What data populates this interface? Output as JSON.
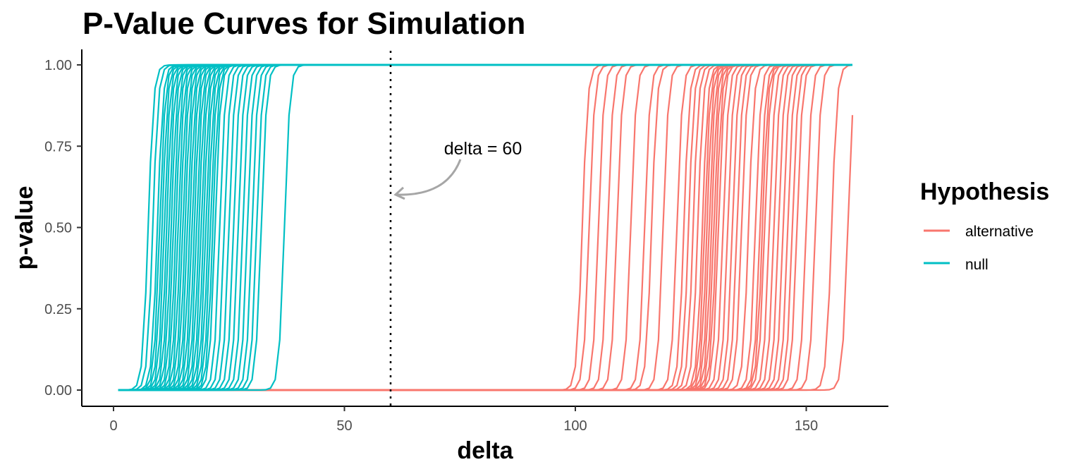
{
  "chart_data": {
    "type": "line",
    "title": "P-Value Curves for Simulation",
    "xlabel": "delta",
    "ylabel": "p-value",
    "xlim": [
      -7,
      167
    ],
    "ylim": [
      -0.05,
      1.05
    ],
    "xticks": [
      0,
      50,
      100,
      150
    ],
    "yticks": [
      0.0,
      0.25,
      0.5,
      0.75,
      1.0
    ],
    "xtick_labels": [
      "0",
      "50",
      "100",
      "150"
    ],
    "ytick_labels": [
      "0.00",
      "0.25",
      "0.50",
      "0.75",
      "1.00"
    ],
    "x_range": [
      1,
      160
    ],
    "grid": false,
    "legend": {
      "title": "Hypothesis",
      "position": "right",
      "entries": [
        {
          "label": "alternative",
          "color": "#F8766D"
        },
        {
          "label": "null",
          "color": "#00BFC4"
        }
      ]
    },
    "reference_line": {
      "x": 60,
      "style": "dotted",
      "color": "#000000"
    },
    "annotation": {
      "text": "delta = 60",
      "arrow_to": [
        60,
        0.6
      ],
      "arrow_color": "#A6A6A6"
    },
    "series": [
      {
        "group": "null",
        "color": "#00BFC4",
        "transition_points": [
          7.5,
          8.5,
          9.5,
          10.0,
          10.5,
          11.0,
          11.5,
          12.0,
          12.5,
          13.0,
          13.5,
          14.0,
          14.5,
          15.0,
          15.5,
          16.0,
          16.5,
          17.0,
          17.5,
          18.0,
          18.5,
          19.0,
          19.5,
          20.0,
          20.5,
          21.0,
          21.5,
          22.0,
          23.0,
          24.0,
          25.0,
          26.0,
          27.0,
          28.0,
          29.0,
          30.0,
          31.0,
          32.0,
          37.0
        ]
      },
      {
        "group": "alternative",
        "color": "#F8766D",
        "transition_points": [
          101.5,
          103.0,
          105.0,
          107.0,
          109.0,
          112.0,
          115.0,
          116.5,
          119.0,
          122.0,
          123.5,
          124.5,
          125.5,
          126.5,
          127.5,
          128.0,
          128.5,
          129.0,
          129.5,
          130.0,
          130.5,
          131.0,
          132.0,
          133.0,
          134.0,
          135.0,
          136.0,
          137.5,
          139.0,
          140.0,
          140.5,
          141.0,
          142.0,
          143.0,
          144.0,
          145.0,
          146.0,
          147.0,
          148.0,
          150.0,
          152.0,
          155.5,
          159.0
        ]
      }
    ]
  }
}
